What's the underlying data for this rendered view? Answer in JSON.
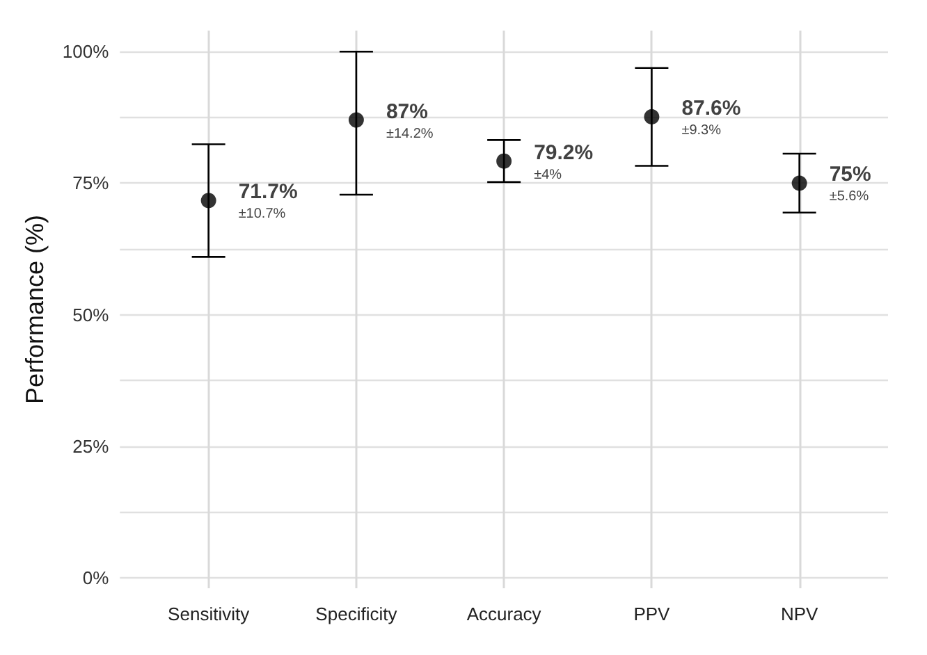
{
  "chart_data": {
    "type": "scatter",
    "ylabel": "Performance (%)",
    "categories": [
      "Sensitivity",
      "Specificity",
      "Accuracy",
      "PPV",
      "NPV"
    ],
    "values": [
      71.7,
      87,
      79.2,
      87.6,
      75
    ],
    "errors": [
      10.7,
      [
        72.8,
        100
      ],
      4,
      9.3,
      5.6
    ],
    "value_labels": [
      "71.7%\n±10.7%",
      "87%\n±14.2%",
      "79.2%\n±4%",
      "87.6%\n±9.3%",
      "75%\n±5.6%"
    ],
    "color": "#000000",
    "marker": "circle",
    "grid": true,
    "ylim": [
      -2,
      104
    ],
    "yticks": [
      {
        "value": 0,
        "label": "0%"
      },
      {
        "value": 12.5,
        "label": null
      },
      {
        "value": 25,
        "label": "25%"
      },
      {
        "value": 37.5,
        "label": null
      },
      {
        "value": 50,
        "label": "50%"
      },
      {
        "value": 62.5,
        "label": null
      },
      {
        "value": 75,
        "label": "75%"
      },
      {
        "value": 87.5,
        "label": null
      },
      {
        "value": 100,
        "label": "100%"
      }
    ]
  }
}
